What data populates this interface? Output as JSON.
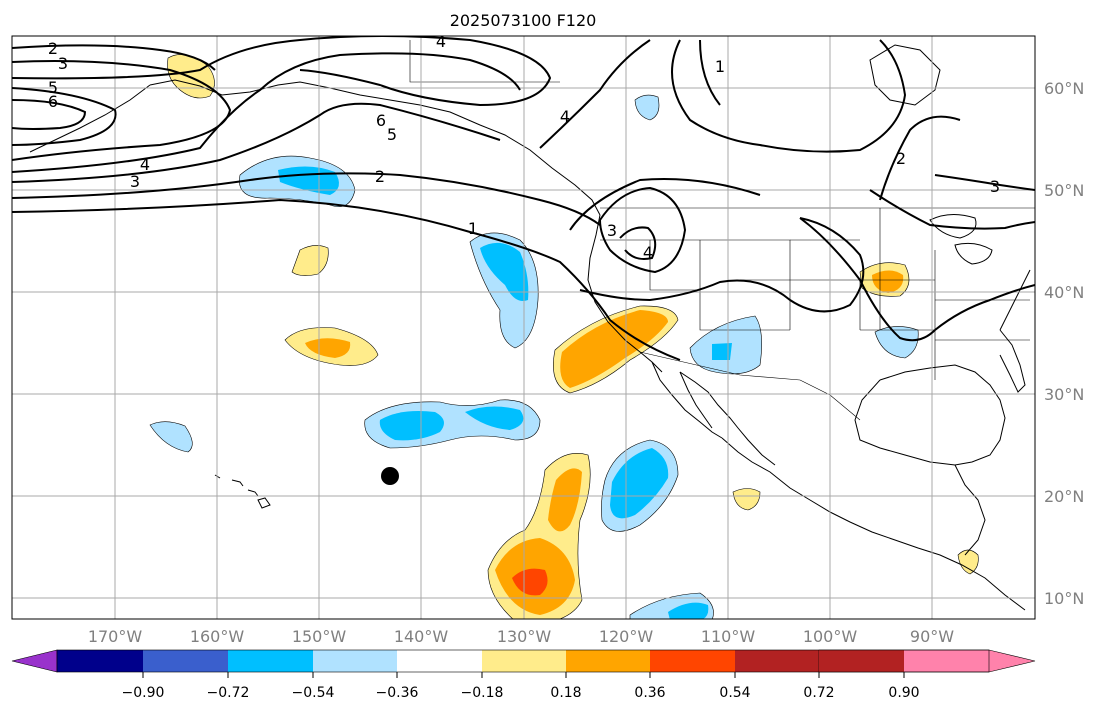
{
  "title": "2025073100 F120",
  "lon_labels": [
    "170°W",
    "160°W",
    "150°W",
    "140°W",
    "130°W",
    "120°W",
    "110°W",
    "100°W",
    "90°W"
  ],
  "lat_labels": [
    "60°N",
    "50°N",
    "40°N",
    "30°N",
    "20°N",
    "10°N"
  ],
  "colorbar": {
    "ticks": [
      "−0.90",
      "−0.72",
      "−0.54",
      "−0.36",
      "−0.18",
      "0.18",
      "0.36",
      "0.54",
      "0.72",
      "0.90"
    ],
    "colors": [
      "#9932cc",
      "#00008b",
      "#3a5fcd",
      "#00bfff",
      "#b0e2ff",
      "#ffffff",
      "#ffec8b",
      "#ffa500",
      "#ff4500",
      "#b22222",
      "#ff82ab"
    ]
  },
  "contour_labels": [
    "2",
    "3",
    "5",
    "6",
    "4",
    "3",
    "4",
    "6",
    "5",
    "2",
    "1",
    "4",
    "3",
    "4",
    "2",
    "3",
    "1"
  ],
  "marker": "black-dot"
}
